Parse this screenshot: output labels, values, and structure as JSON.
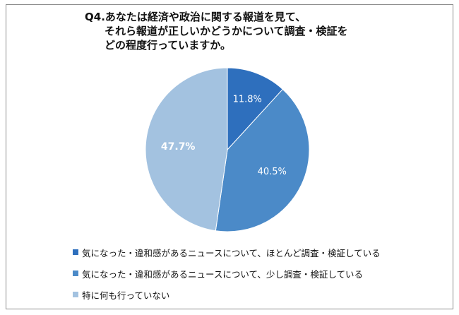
{
  "chart_data": {
    "type": "pie",
    "title_lines": [
      "Q4.あなたは経済や政治に関する報道を見て、",
      "それら報道が正しいかどうかについて調査・検証を",
      "どの程度行っていますか。"
    ],
    "slices": [
      {
        "label": "気になった・違和感があるニュースについて、ほとんど調査・検証している",
        "value": 11.8,
        "display": "11.8%",
        "color": "#2e6fbd",
        "text_color": "#ffffff",
        "bold": false
      },
      {
        "label": "気になった・違和感があるニュースについて、少し調査・検証している",
        "value": 40.5,
        "display": "40.5%",
        "color": "#4b8ac8",
        "text_color": "#ffffff",
        "bold": false
      },
      {
        "label": "特に何も行っていない",
        "value": 47.7,
        "display": "47.7%",
        "color": "#a3c2e0",
        "text_color": "#ffffff",
        "bold": true
      }
    ],
    "legend_position": "bottom-left"
  }
}
